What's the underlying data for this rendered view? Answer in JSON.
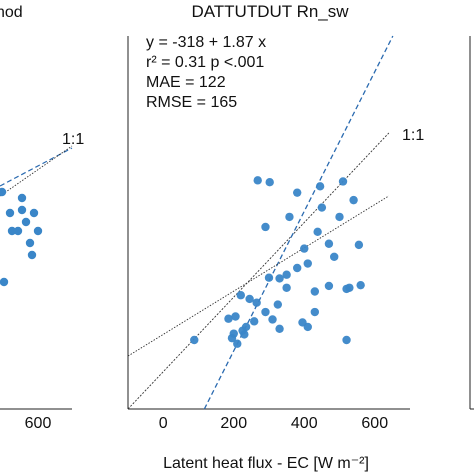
{
  "chart_data": [
    {
      "type": "scatter",
      "title": "nod",
      "xticks": [
        600
      ],
      "one_to_one_label": "1:1",
      "xlim": [
        -200,
        700
      ],
      "ylim": [
        -200,
        900
      ],
      "points": [
        {
          "x": 380,
          "y": 480
        },
        {
          "x": 420,
          "y": 445
        },
        {
          "x": 430,
          "y": 415
        },
        {
          "x": 480,
          "y": 470
        },
        {
          "x": 500,
          "y": 430
        },
        {
          "x": 540,
          "y": 445
        },
        {
          "x": 520,
          "y": 395
        },
        {
          "x": 560,
          "y": 415
        },
        {
          "x": 530,
          "y": 375
        },
        {
          "x": 460,
          "y": 415
        },
        {
          "x": 390,
          "y": 330
        },
        {
          "x": 480,
          "y": 450
        }
      ]
    },
    {
      "type": "scatter",
      "title": "DATTUTDUT Rn_sw",
      "xlabel": "Latent heat flux - EC [W m⁻²]",
      "xlim": [
        -100,
        700
      ],
      "ylim": [
        -100,
        900
      ],
      "xticks": [
        0,
        200,
        400,
        600
      ],
      "one_to_one_label": "1:1",
      "stats": [
        "y = -318 + 1.87 x",
        "r² = 0.31  p <.001",
        "MAE = 122",
        "RMSE = 165"
      ],
      "fit": {
        "intercept": -318,
        "slope": 1.87
      },
      "points": [
        {
          "x": 268,
          "y": 513
        },
        {
          "x": 302,
          "y": 508
        },
        {
          "x": 445,
          "y": 497
        },
        {
          "x": 510,
          "y": 510
        },
        {
          "x": 380,
          "y": 480
        },
        {
          "x": 540,
          "y": 460
        },
        {
          "x": 450,
          "y": 440
        },
        {
          "x": 358,
          "y": 415
        },
        {
          "x": 500,
          "y": 415
        },
        {
          "x": 290,
          "y": 388
        },
        {
          "x": 438,
          "y": 375
        },
        {
          "x": 555,
          "y": 340
        },
        {
          "x": 470,
          "y": 343
        },
        {
          "x": 400,
          "y": 330
        },
        {
          "x": 485,
          "y": 308
        },
        {
          "x": 410,
          "y": 290
        },
        {
          "x": 380,
          "y": 278
        },
        {
          "x": 350,
          "y": 260
        },
        {
          "x": 300,
          "y": 252
        },
        {
          "x": 330,
          "y": 250
        },
        {
          "x": 560,
          "y": 232
        },
        {
          "x": 470,
          "y": 230
        },
        {
          "x": 528,
          "y": 225
        },
        {
          "x": 350,
          "y": 225
        },
        {
          "x": 430,
          "y": 215
        },
        {
          "x": 520,
          "y": 222
        },
        {
          "x": 220,
          "y": 205
        },
        {
          "x": 245,
          "y": 195
        },
        {
          "x": 265,
          "y": 185
        },
        {
          "x": 325,
          "y": 180
        },
        {
          "x": 290,
          "y": 160
        },
        {
          "x": 430,
          "y": 160
        },
        {
          "x": 205,
          "y": 148
        },
        {
          "x": 310,
          "y": 140
        },
        {
          "x": 395,
          "y": 132
        },
        {
          "x": 258,
          "y": 135
        },
        {
          "x": 235,
          "y": 120
        },
        {
          "x": 185,
          "y": 142
        },
        {
          "x": 225,
          "y": 110
        },
        {
          "x": 330,
          "y": 115
        },
        {
          "x": 410,
          "y": 120
        },
        {
          "x": 200,
          "y": 102
        },
        {
          "x": 195,
          "y": 90
        },
        {
          "x": 210,
          "y": 75
        },
        {
          "x": 520,
          "y": 85
        },
        {
          "x": 88,
          "y": 85
        },
        {
          "x": 230,
          "y": 100
        }
      ]
    }
  ]
}
